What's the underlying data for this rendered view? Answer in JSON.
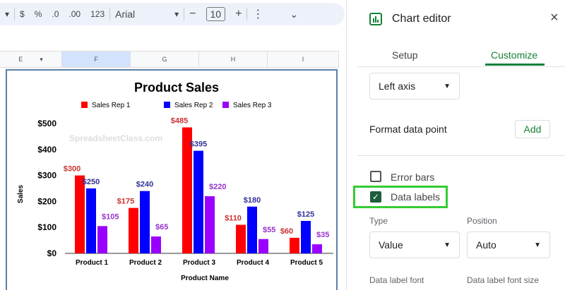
{
  "toolbar": {
    "currency": "$",
    "percent": "%",
    "dec_decrease": ".0",
    "dec_increase": ".00",
    "format_123": "123",
    "font": "Arial",
    "font_size": "10",
    "minus": "−",
    "plus": "+",
    "more": "⋮",
    "collapse": "⌄"
  },
  "columns": [
    "E",
    "F",
    "G",
    "H",
    "I"
  ],
  "chart_data": {
    "type": "bar",
    "title": "Product Sales",
    "xlabel": "Product Name",
    "ylabel": "Sales",
    "ylim": [
      0,
      500
    ],
    "yticks": [
      "$0",
      "$100",
      "$200",
      "$300",
      "$400",
      "$500"
    ],
    "categories": [
      "Product 1",
      "Product 2",
      "Product 3",
      "Product 4",
      "Product 5"
    ],
    "series": [
      {
        "name": "Sales Rep 1",
        "color": "#ff0000",
        "label_color": "#cc3333",
        "values": [
          300,
          175,
          485,
          110,
          60
        ]
      },
      {
        "name": "Sales Rep 2",
        "color": "#0000ff",
        "label_color": "#333399",
        "values": [
          250,
          240,
          395,
          180,
          125
        ]
      },
      {
        "name": "Sales Rep 3",
        "color": "#9900ff",
        "label_color": "#9933cc",
        "values": [
          105,
          65,
          220,
          55,
          35
        ]
      }
    ],
    "legend": "top",
    "watermark": "SpreadsheetClass.com"
  },
  "panel": {
    "title": "Chart editor",
    "close": "×",
    "tabs": [
      "Setup",
      "Customize"
    ],
    "active_tab": "Customize",
    "axis_select": "Left axis",
    "format_data_point": "Format data point",
    "add": "Add",
    "error_bars": "Error bars",
    "error_bars_checked": false,
    "data_labels": "Data labels",
    "data_labels_checked": true,
    "type_label": "Type",
    "type_value": "Value",
    "position_label": "Position",
    "position_value": "Auto",
    "font_label": "Data label font",
    "font_size_label": "Data label font size",
    "accent": "#188038",
    "highlight": "#33cc33"
  }
}
